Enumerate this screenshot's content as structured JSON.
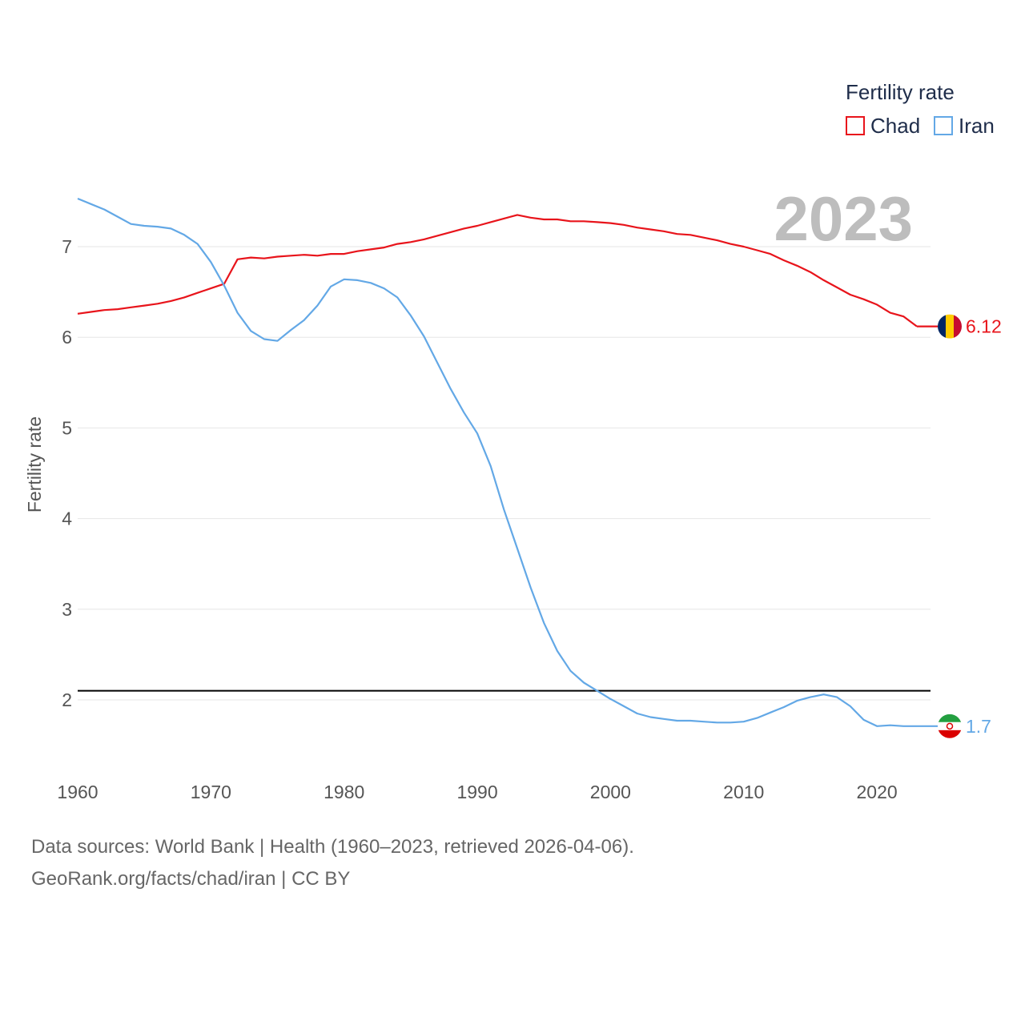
{
  "chart_data": {
    "type": "line",
    "title": "Fertility rate",
    "ylabel": "Fertility rate",
    "xlabel": "",
    "year_label": "2023",
    "xlim": [
      1960,
      2023
    ],
    "ylim": [
      1.4,
      7.7
    ],
    "y_ticks": [
      2,
      3,
      4,
      5,
      6,
      7
    ],
    "x_ticks": [
      1960,
      1970,
      1980,
      1990,
      2000,
      2010,
      2020
    ],
    "reference_line": {
      "y": 2.1,
      "color": "#000000"
    },
    "series": [
      {
        "name": "Chad",
        "color": "#e8141b",
        "end_label": "6.12",
        "flag": [
          "#002664",
          "#fecb00",
          "#c60c30"
        ],
        "x": [
          1960,
          1961,
          1962,
          1963,
          1964,
          1965,
          1966,
          1967,
          1968,
          1969,
          1970,
          1971,
          1972,
          1973,
          1974,
          1975,
          1976,
          1977,
          1978,
          1979,
          1980,
          1981,
          1982,
          1983,
          1984,
          1985,
          1986,
          1987,
          1988,
          1989,
          1990,
          1991,
          1992,
          1993,
          1994,
          1995,
          1996,
          1997,
          1998,
          1999,
          2000,
          2001,
          2002,
          2003,
          2004,
          2005,
          2006,
          2007,
          2008,
          2009,
          2010,
          2011,
          2012,
          2013,
          2014,
          2015,
          2016,
          2017,
          2018,
          2019,
          2020,
          2021,
          2022,
          2023
        ],
        "values": [
          6.26,
          6.28,
          6.3,
          6.31,
          6.33,
          6.35,
          6.37,
          6.4,
          6.44,
          6.49,
          6.54,
          6.59,
          6.86,
          6.88,
          6.87,
          6.89,
          6.9,
          6.91,
          6.9,
          6.92,
          6.92,
          6.95,
          6.97,
          6.99,
          7.03,
          7.05,
          7.08,
          7.12,
          7.16,
          7.2,
          7.23,
          7.27,
          7.31,
          7.35,
          7.32,
          7.3,
          7.3,
          7.28,
          7.28,
          7.27,
          7.26,
          7.24,
          7.21,
          7.19,
          7.17,
          7.14,
          7.13,
          7.1,
          7.07,
          7.03,
          7.0,
          6.96,
          6.92,
          6.85,
          6.79,
          6.72,
          6.63,
          6.55,
          6.47,
          6.42,
          6.36,
          6.27,
          6.23,
          6.12
        ]
      },
      {
        "name": "Iran",
        "color": "#63a8e6",
        "end_label": "1.7",
        "flag": [
          "#239f40",
          "#ffffff",
          "#da0000"
        ],
        "x": [
          1960,
          1961,
          1962,
          1963,
          1964,
          1965,
          1966,
          1967,
          1968,
          1969,
          1970,
          1971,
          1972,
          1973,
          1974,
          1975,
          1976,
          1977,
          1978,
          1979,
          1980,
          1981,
          1982,
          1983,
          1984,
          1985,
          1986,
          1987,
          1988,
          1989,
          1990,
          1991,
          1992,
          1993,
          1994,
          1995,
          1996,
          1997,
          1998,
          1999,
          2000,
          2001,
          2002,
          2003,
          2004,
          2005,
          2006,
          2007,
          2008,
          2009,
          2010,
          2011,
          2012,
          2013,
          2014,
          2015,
          2016,
          2017,
          2018,
          2019,
          2020,
          2021,
          2022,
          2023
        ],
        "values": [
          7.53,
          7.47,
          7.41,
          7.33,
          7.25,
          7.23,
          7.22,
          7.2,
          7.13,
          7.03,
          6.83,
          6.57,
          6.27,
          6.07,
          5.98,
          5.96,
          6.08,
          6.19,
          6.35,
          6.56,
          6.64,
          6.63,
          6.6,
          6.54,
          6.44,
          6.24,
          6.01,
          5.72,
          5.43,
          5.17,
          4.94,
          4.58,
          4.1,
          3.67,
          3.24,
          2.85,
          2.54,
          2.32,
          2.19,
          2.1,
          2.01,
          1.93,
          1.85,
          1.81,
          1.79,
          1.77,
          1.77,
          1.76,
          1.75,
          1.75,
          1.76,
          1.8,
          1.86,
          1.92,
          1.99,
          2.03,
          2.06,
          2.03,
          1.93,
          1.78,
          1.71,
          1.72,
          1.71,
          1.71
        ]
      }
    ]
  },
  "footer": {
    "sources": "Data sources: World Bank | Health (1960–2023, retrieved 2026-04-06).",
    "credit": "GeoRank.org/facts/chad/iran | CC BY"
  }
}
